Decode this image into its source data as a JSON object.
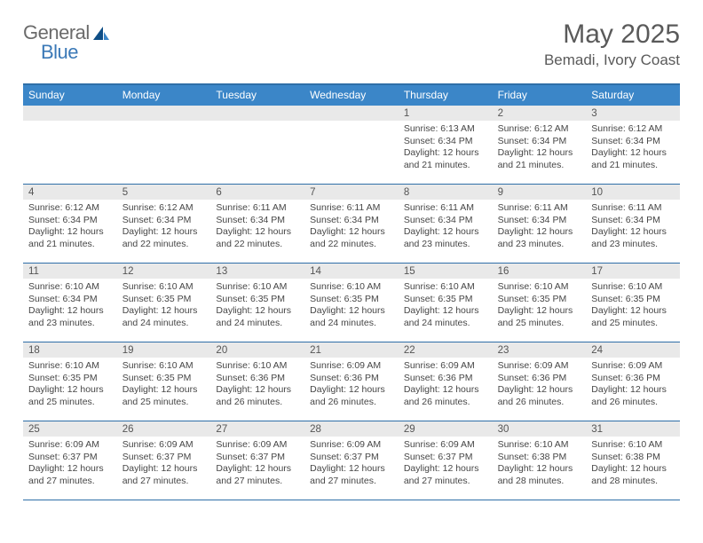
{
  "logo": {
    "general": "General",
    "blue": "Blue"
  },
  "title": "May 2025",
  "location": "Bemadi, Ivory Coast",
  "colors": {
    "header_bar": "#3b86c8",
    "header_border": "#2f6fa8",
    "daynum_bg": "#e9e9e9",
    "text": "#464646",
    "logo_gray": "#6b6b6b",
    "logo_blue": "#3b79b7",
    "sail_dark": "#0f4e86",
    "sail_light": "#3b86c8"
  },
  "day_headers": [
    "Sunday",
    "Monday",
    "Tuesday",
    "Wednesday",
    "Thursday",
    "Friday",
    "Saturday"
  ],
  "weeks": [
    [
      {
        "n": "",
        "l1": "",
        "l2": "",
        "l3": "",
        "l4": "",
        "empty": true
      },
      {
        "n": "",
        "l1": "",
        "l2": "",
        "l3": "",
        "l4": "",
        "empty": true
      },
      {
        "n": "",
        "l1": "",
        "l2": "",
        "l3": "",
        "l4": "",
        "empty": true
      },
      {
        "n": "",
        "l1": "",
        "l2": "",
        "l3": "",
        "l4": "",
        "empty": true
      },
      {
        "n": "1",
        "l1": "Sunrise: 6:13 AM",
        "l2": "Sunset: 6:34 PM",
        "l3": "Daylight: 12 hours",
        "l4": "and 21 minutes."
      },
      {
        "n": "2",
        "l1": "Sunrise: 6:12 AM",
        "l2": "Sunset: 6:34 PM",
        "l3": "Daylight: 12 hours",
        "l4": "and 21 minutes."
      },
      {
        "n": "3",
        "l1": "Sunrise: 6:12 AM",
        "l2": "Sunset: 6:34 PM",
        "l3": "Daylight: 12 hours",
        "l4": "and 21 minutes."
      }
    ],
    [
      {
        "n": "4",
        "l1": "Sunrise: 6:12 AM",
        "l2": "Sunset: 6:34 PM",
        "l3": "Daylight: 12 hours",
        "l4": "and 21 minutes."
      },
      {
        "n": "5",
        "l1": "Sunrise: 6:12 AM",
        "l2": "Sunset: 6:34 PM",
        "l3": "Daylight: 12 hours",
        "l4": "and 22 minutes."
      },
      {
        "n": "6",
        "l1": "Sunrise: 6:11 AM",
        "l2": "Sunset: 6:34 PM",
        "l3": "Daylight: 12 hours",
        "l4": "and 22 minutes."
      },
      {
        "n": "7",
        "l1": "Sunrise: 6:11 AM",
        "l2": "Sunset: 6:34 PM",
        "l3": "Daylight: 12 hours",
        "l4": "and 22 minutes."
      },
      {
        "n": "8",
        "l1": "Sunrise: 6:11 AM",
        "l2": "Sunset: 6:34 PM",
        "l3": "Daylight: 12 hours",
        "l4": "and 23 minutes."
      },
      {
        "n": "9",
        "l1": "Sunrise: 6:11 AM",
        "l2": "Sunset: 6:34 PM",
        "l3": "Daylight: 12 hours",
        "l4": "and 23 minutes."
      },
      {
        "n": "10",
        "l1": "Sunrise: 6:11 AM",
        "l2": "Sunset: 6:34 PM",
        "l3": "Daylight: 12 hours",
        "l4": "and 23 minutes."
      }
    ],
    [
      {
        "n": "11",
        "l1": "Sunrise: 6:10 AM",
        "l2": "Sunset: 6:34 PM",
        "l3": "Daylight: 12 hours",
        "l4": "and 23 minutes."
      },
      {
        "n": "12",
        "l1": "Sunrise: 6:10 AM",
        "l2": "Sunset: 6:35 PM",
        "l3": "Daylight: 12 hours",
        "l4": "and 24 minutes."
      },
      {
        "n": "13",
        "l1": "Sunrise: 6:10 AM",
        "l2": "Sunset: 6:35 PM",
        "l3": "Daylight: 12 hours",
        "l4": "and 24 minutes."
      },
      {
        "n": "14",
        "l1": "Sunrise: 6:10 AM",
        "l2": "Sunset: 6:35 PM",
        "l3": "Daylight: 12 hours",
        "l4": "and 24 minutes."
      },
      {
        "n": "15",
        "l1": "Sunrise: 6:10 AM",
        "l2": "Sunset: 6:35 PM",
        "l3": "Daylight: 12 hours",
        "l4": "and 24 minutes."
      },
      {
        "n": "16",
        "l1": "Sunrise: 6:10 AM",
        "l2": "Sunset: 6:35 PM",
        "l3": "Daylight: 12 hours",
        "l4": "and 25 minutes."
      },
      {
        "n": "17",
        "l1": "Sunrise: 6:10 AM",
        "l2": "Sunset: 6:35 PM",
        "l3": "Daylight: 12 hours",
        "l4": "and 25 minutes."
      }
    ],
    [
      {
        "n": "18",
        "l1": "Sunrise: 6:10 AM",
        "l2": "Sunset: 6:35 PM",
        "l3": "Daylight: 12 hours",
        "l4": "and 25 minutes."
      },
      {
        "n": "19",
        "l1": "Sunrise: 6:10 AM",
        "l2": "Sunset: 6:35 PM",
        "l3": "Daylight: 12 hours",
        "l4": "and 25 minutes."
      },
      {
        "n": "20",
        "l1": "Sunrise: 6:10 AM",
        "l2": "Sunset: 6:36 PM",
        "l3": "Daylight: 12 hours",
        "l4": "and 26 minutes."
      },
      {
        "n": "21",
        "l1": "Sunrise: 6:09 AM",
        "l2": "Sunset: 6:36 PM",
        "l3": "Daylight: 12 hours",
        "l4": "and 26 minutes."
      },
      {
        "n": "22",
        "l1": "Sunrise: 6:09 AM",
        "l2": "Sunset: 6:36 PM",
        "l3": "Daylight: 12 hours",
        "l4": "and 26 minutes."
      },
      {
        "n": "23",
        "l1": "Sunrise: 6:09 AM",
        "l2": "Sunset: 6:36 PM",
        "l3": "Daylight: 12 hours",
        "l4": "and 26 minutes."
      },
      {
        "n": "24",
        "l1": "Sunrise: 6:09 AM",
        "l2": "Sunset: 6:36 PM",
        "l3": "Daylight: 12 hours",
        "l4": "and 26 minutes."
      }
    ],
    [
      {
        "n": "25",
        "l1": "Sunrise: 6:09 AM",
        "l2": "Sunset: 6:37 PM",
        "l3": "Daylight: 12 hours",
        "l4": "and 27 minutes."
      },
      {
        "n": "26",
        "l1": "Sunrise: 6:09 AM",
        "l2": "Sunset: 6:37 PM",
        "l3": "Daylight: 12 hours",
        "l4": "and 27 minutes."
      },
      {
        "n": "27",
        "l1": "Sunrise: 6:09 AM",
        "l2": "Sunset: 6:37 PM",
        "l3": "Daylight: 12 hours",
        "l4": "and 27 minutes."
      },
      {
        "n": "28",
        "l1": "Sunrise: 6:09 AM",
        "l2": "Sunset: 6:37 PM",
        "l3": "Daylight: 12 hours",
        "l4": "and 27 minutes."
      },
      {
        "n": "29",
        "l1": "Sunrise: 6:09 AM",
        "l2": "Sunset: 6:37 PM",
        "l3": "Daylight: 12 hours",
        "l4": "and 27 minutes."
      },
      {
        "n": "30",
        "l1": "Sunrise: 6:10 AM",
        "l2": "Sunset: 6:38 PM",
        "l3": "Daylight: 12 hours",
        "l4": "and 28 minutes."
      },
      {
        "n": "31",
        "l1": "Sunrise: 6:10 AM",
        "l2": "Sunset: 6:38 PM",
        "l3": "Daylight: 12 hours",
        "l4": "and 28 minutes."
      }
    ]
  ]
}
